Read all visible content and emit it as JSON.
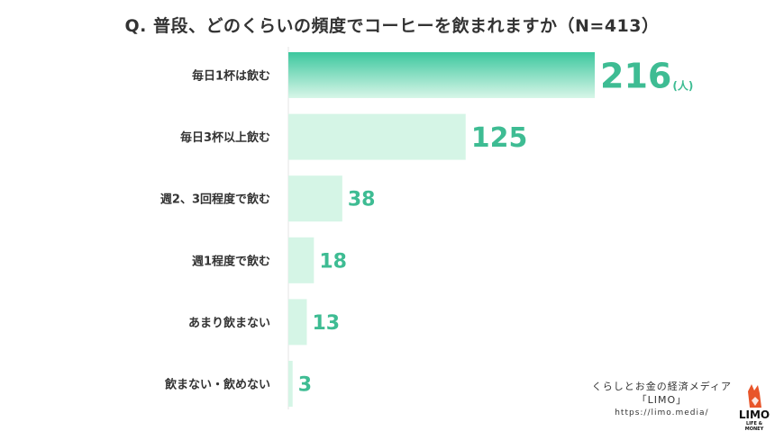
{
  "chart_data": {
    "type": "bar",
    "orientation": "horizontal",
    "title": "Q. 普段、どのくらいの頻度でコーヒーを飲まれますか（N=413）",
    "unit": "(人)",
    "categories": [
      "毎日1杯は飲む",
      "毎日3杯以上飲む",
      "週2、3回程度で飲む",
      "週1程度で飲む",
      "あまり飲まない",
      "飲まない・飲めない"
    ],
    "values": [
      216,
      125,
      38,
      18,
      13,
      3
    ],
    "xlim": [
      0,
      216
    ],
    "grid": false,
    "colors": {
      "bar": "#d5f5e6",
      "bar_top_gradient_start": "#3cc79e",
      "bar_top_gradient_end": "#d8f6e8",
      "value_label": "#3ebc93",
      "category_label": "#333333"
    }
  },
  "footer": {
    "line1": "くらしとお金の経済メディア",
    "line2": "「LIMO」",
    "url": "https://limo.media/"
  },
  "logo": {
    "text": "LIMO",
    "sub": "LIFE & MONEY",
    "icon": "fox-icon",
    "color": "#e8552a"
  }
}
